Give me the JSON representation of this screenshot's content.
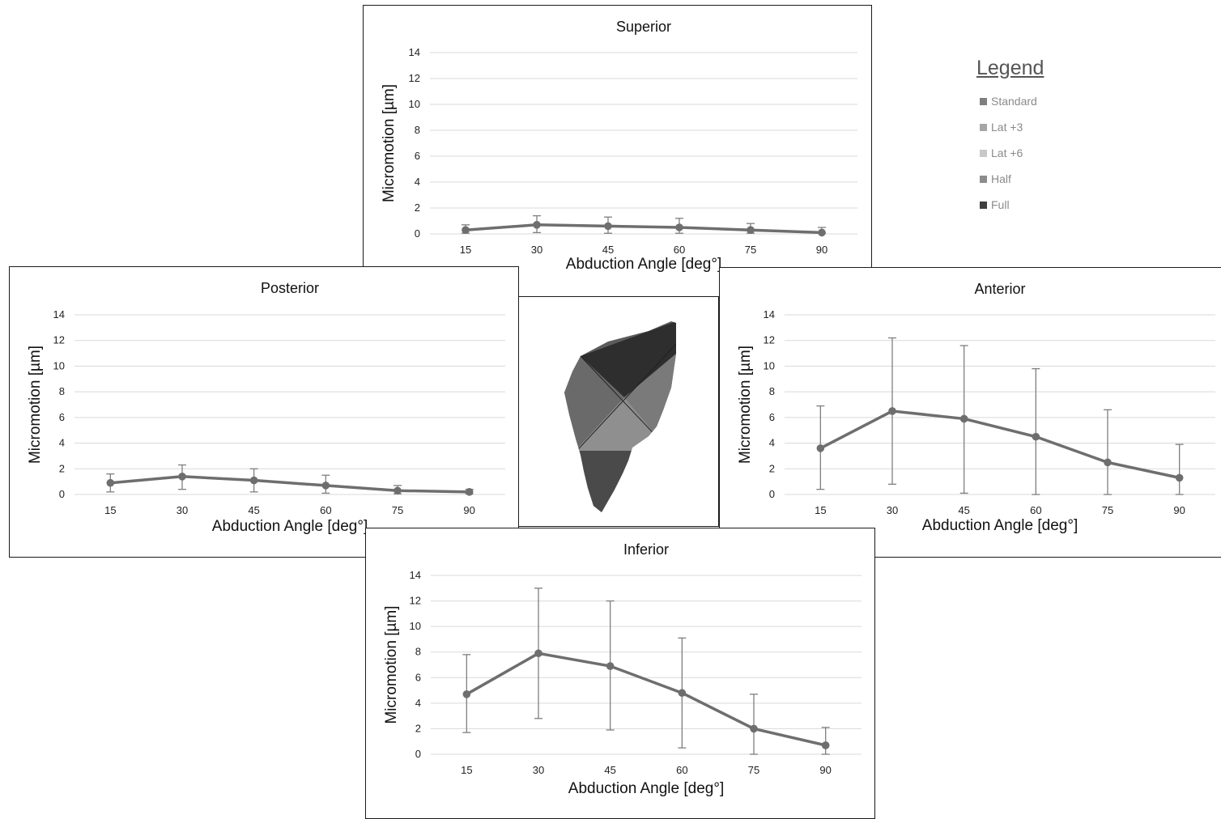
{
  "chart_data": [
    {
      "id": "superior",
      "type": "line",
      "title": "Superior",
      "xlabel": "Abduction Angle [deg°]",
      "ylabel": "Micromotion [µm]",
      "categories": [
        "15",
        "30",
        "45",
        "60",
        "75",
        "90"
      ],
      "ylim": [
        0,
        14
      ],
      "yticks": [
        "0",
        "2",
        "4",
        "6",
        "8",
        "10",
        "12",
        "14"
      ],
      "grid": true,
      "series": [
        {
          "values": [
            0.3,
            0.7,
            0.6,
            0.5,
            0.3,
            0.1
          ],
          "error_upper": [
            0.7,
            1.4,
            1.3,
            1.2,
            0.8,
            0.5
          ],
          "error_lower": [
            0.05,
            0.1,
            0.05,
            0.05,
            0.05,
            0.05
          ]
        }
      ]
    },
    {
      "id": "posterior",
      "type": "line",
      "title": "Posterior",
      "xlabel": "Abduction Angle [deg°]",
      "ylabel": "Micromotion [µm]",
      "categories": [
        "15",
        "30",
        "45",
        "60",
        "75",
        "90"
      ],
      "ylim": [
        0,
        14
      ],
      "yticks": [
        "0",
        "2",
        "4",
        "6",
        "8",
        "10",
        "12",
        "14"
      ],
      "grid": true,
      "series": [
        {
          "values": [
            0.9,
            1.4,
            1.1,
            0.7,
            0.3,
            0.2
          ],
          "error_upper": [
            1.6,
            2.3,
            2.0,
            1.5,
            0.7,
            0.4
          ],
          "error_lower": [
            0.2,
            0.4,
            0.2,
            0.1,
            0.05,
            0.05
          ]
        }
      ]
    },
    {
      "id": "anterior",
      "type": "line",
      "title": "Anterior",
      "xlabel": "Abduction Angle [deg°]",
      "ylabel": "Micromotion [µm]",
      "categories": [
        "15",
        "30",
        "45",
        "60",
        "75",
        "90"
      ],
      "ylim": [
        0,
        14
      ],
      "yticks": [
        "0",
        "2",
        "4",
        "6",
        "8",
        "10",
        "12",
        "14"
      ],
      "grid": true,
      "series": [
        {
          "values": [
            3.6,
            6.5,
            5.9,
            4.5,
            2.5,
            1.3
          ],
          "error_upper": [
            6.9,
            12.2,
            11.6,
            9.8,
            6.6,
            3.9
          ],
          "error_lower": [
            0.4,
            0.8,
            0.1,
            0.0,
            0.0,
            0.0
          ]
        }
      ]
    },
    {
      "id": "inferior",
      "type": "line",
      "title": "Inferior",
      "xlabel": "Abduction Angle [deg°]",
      "ylabel": "Micromotion [µm]",
      "categories": [
        "15",
        "30",
        "45",
        "60",
        "75",
        "90"
      ],
      "ylim": [
        0,
        14
      ],
      "yticks": [
        "0",
        "2",
        "4",
        "6",
        "8",
        "10",
        "12",
        "14"
      ],
      "grid": true,
      "series": [
        {
          "values": [
            4.7,
            7.9,
            6.9,
            4.8,
            2.0,
            0.7
          ],
          "error_upper": [
            7.8,
            13.0,
            12.0,
            9.1,
            4.7,
            2.1
          ],
          "error_lower": [
            1.7,
            2.8,
            1.9,
            0.5,
            0.0,
            0.0
          ]
        }
      ]
    }
  ],
  "legend": {
    "heading": "Legend",
    "items": [
      {
        "label": "Standard",
        "color": "#7f7f7f"
      },
      {
        "label": "Lat +3",
        "color": "#a6a6a6"
      },
      {
        "label": "Lat +6",
        "color": "#c8c8c8"
      },
      {
        "label": "Half",
        "color": "#8c8c8c"
      },
      {
        "label": "Full",
        "color": "#404040"
      }
    ]
  },
  "colors": {
    "line": "#6e6e6e",
    "grid": "#d9d9d9",
    "errorbar": "#7f7f7f"
  }
}
